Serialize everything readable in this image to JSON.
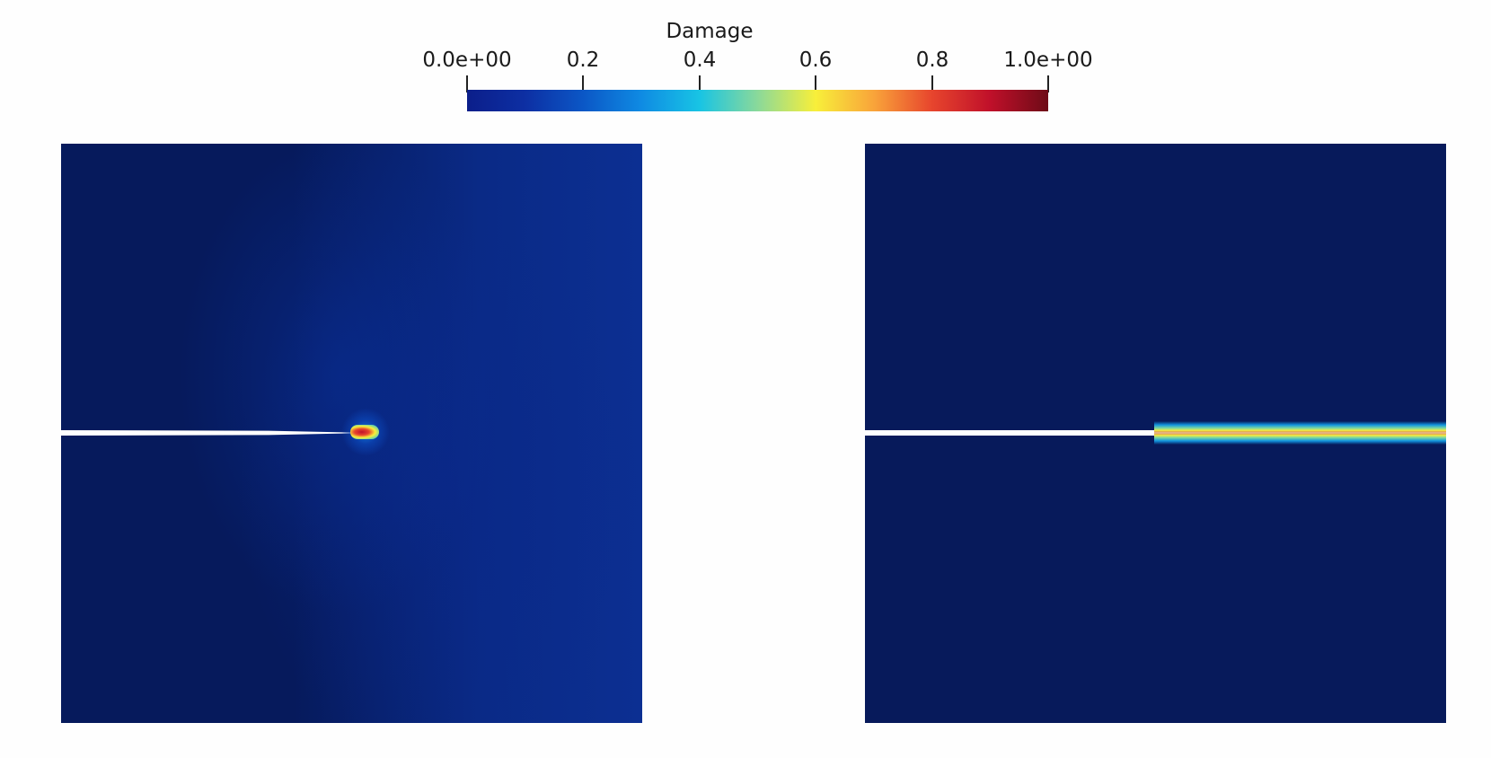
{
  "colorbar": {
    "title": "Damage",
    "ticks": [
      {
        "label": "0.0e+00",
        "value": 0.0
      },
      {
        "label": "0.2",
        "value": 0.2
      },
      {
        "label": "0.4",
        "value": 0.4
      },
      {
        "label": "0.6",
        "value": 0.6
      },
      {
        "label": "0.8",
        "value": 0.8
      },
      {
        "label": "1.0e+00",
        "value": 1.0
      }
    ],
    "range": [
      0.0,
      1.0
    ],
    "colormap": [
      "#0b1e8a",
      "#0f8be3",
      "#18c4e4",
      "#f8ef3a",
      "#e7452d",
      "#6e0b17"
    ]
  },
  "panels": [
    {
      "id": "left",
      "crack_extent": 0.53,
      "damage_zone": "crack-tip",
      "background_color": "#061a5c"
    },
    {
      "id": "right",
      "crack_extent": 1.0,
      "damage_zone": "propagated-band",
      "background_color": "#071a5b"
    }
  ]
}
